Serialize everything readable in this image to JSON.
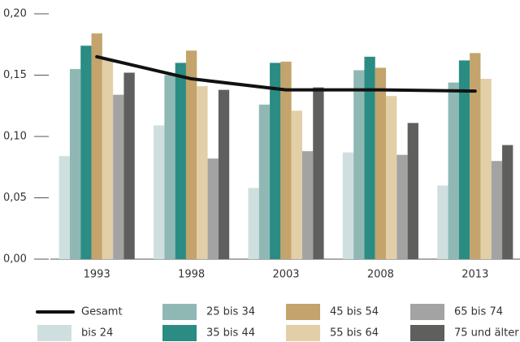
{
  "chart_data": {
    "type": "bar",
    "categories": [
      "1993",
      "1998",
      "2003",
      "2008",
      "2013"
    ],
    "ylim": [
      0,
      0.2
    ],
    "yticks": [
      {
        "value": 0,
        "label": "0,00"
      },
      {
        "value": 0.05,
        "label": "0,05"
      },
      {
        "value": 0.1,
        "label": "0,10"
      },
      {
        "value": 0.15,
        "label": "0,15"
      },
      {
        "value": 0.2,
        "label": "0,20"
      }
    ],
    "legend": "bottom",
    "series": [
      {
        "name": "Gesamt",
        "type": "line",
        "color": "#111111",
        "values": [
          0.165,
          0.147,
          0.138,
          0.138,
          0.137
        ]
      },
      {
        "name": "bis 24",
        "color": "#cfdfdf",
        "values": [
          0.084,
          0.109,
          0.058,
          0.087,
          0.06
        ]
      },
      {
        "name": "25 bis 34",
        "color": "#8fb8b5",
        "values": [
          0.155,
          0.15,
          0.126,
          0.154,
          0.144
        ]
      },
      {
        "name": "35 bis 44",
        "color": "#2a8c83",
        "values": [
          0.174,
          0.16,
          0.16,
          0.165,
          0.162
        ]
      },
      {
        "name": "45 bis 54",
        "color": "#c4a46c",
        "values": [
          0.184,
          0.17,
          0.161,
          0.156,
          0.168
        ]
      },
      {
        "name": "55 bis 64",
        "color": "#e2cfa8",
        "values": [
          0.163,
          0.141,
          0.121,
          0.133,
          0.147
        ]
      },
      {
        "name": "65 bis 74",
        "color": "#a3a3a3",
        "values": [
          0.134,
          0.082,
          0.088,
          0.085,
          0.08
        ]
      },
      {
        "name": "75 und älter",
        "color": "#5f5f5d",
        "values": [
          0.152,
          0.138,
          0.14,
          0.111,
          0.093
        ]
      }
    ]
  }
}
